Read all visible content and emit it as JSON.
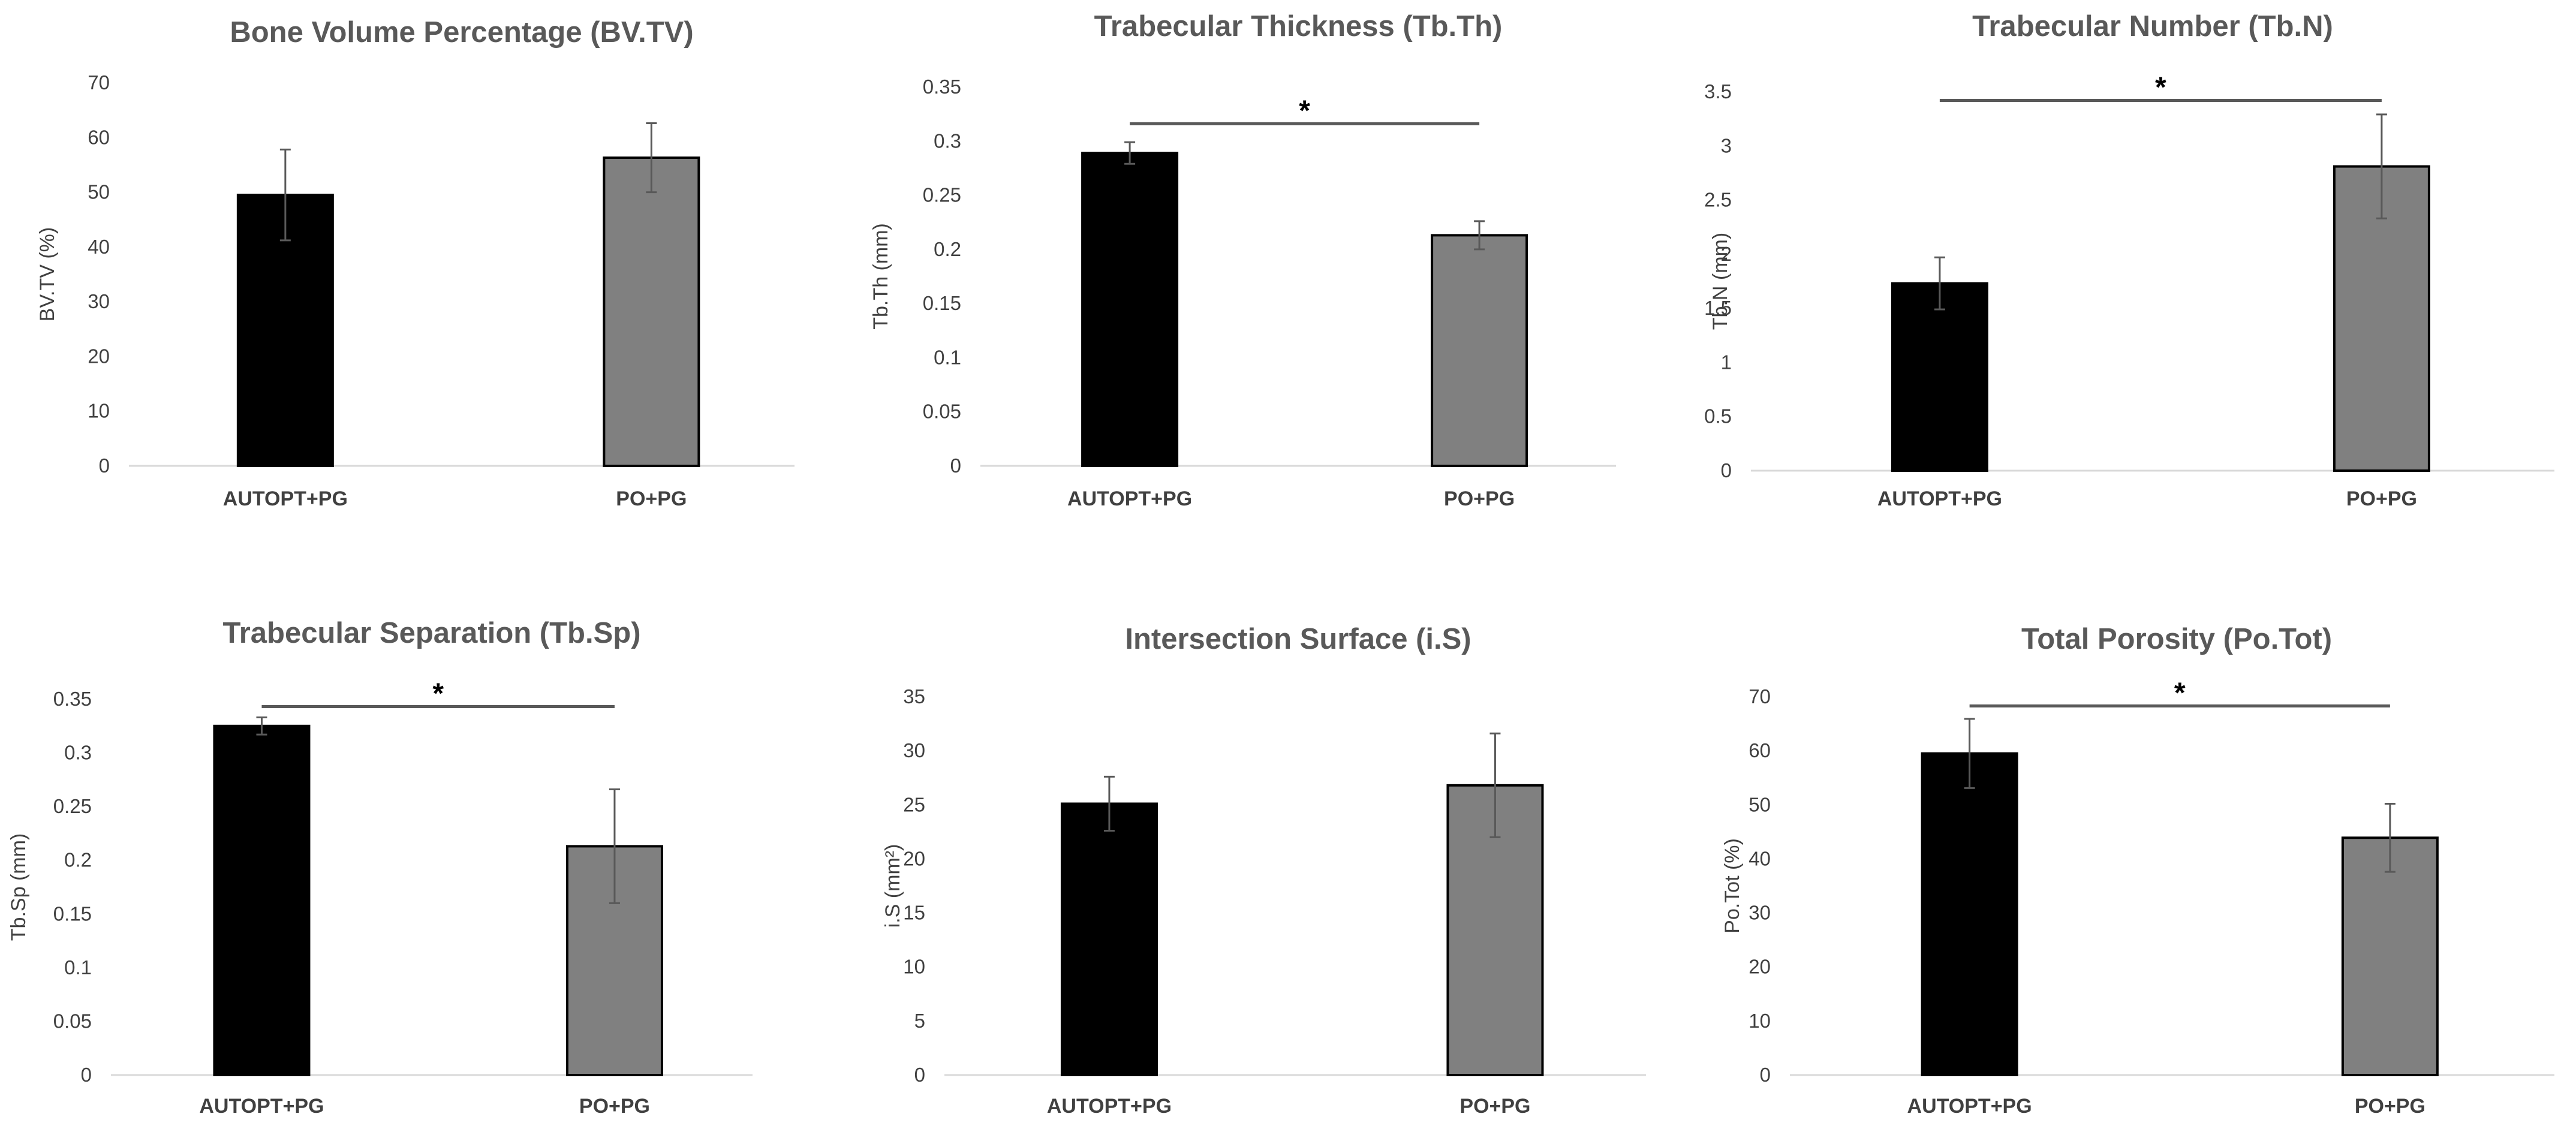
{
  "colors": {
    "group1": "#000000",
    "group2": "#808080",
    "axis": "#d9d9d9",
    "error": "#595959",
    "sig_line": "#595959"
  },
  "chart_data": [
    {
      "type": "bar",
      "title": "Bone Volume Percentage (BV.TV)",
      "ylabel": "BV.TV (%)",
      "categories": [
        "AUTOPT+PG",
        "PO+PG"
      ],
      "values": [
        49.5,
        56.3
      ],
      "errors": [
        8.3,
        6.3
      ],
      "ylim": [
        0,
        70
      ],
      "yticks": [
        "0",
        "10",
        "20",
        "30",
        "40",
        "50",
        "60",
        "70"
      ],
      "significance": null
    },
    {
      "type": "bar",
      "title": "Trabecular Thickness (Tb.Th)",
      "ylabel": "Tb.Th (mm)",
      "categories": [
        "AUTOPT+PG",
        "PO+PG"
      ],
      "values": [
        0.289,
        0.213
      ],
      "errors": [
        0.01,
        0.013
      ],
      "ylim": [
        0,
        0.35
      ],
      "yticks": [
        "0",
        "0.05",
        "0.1",
        "0.15",
        "0.2",
        "0.25",
        "0.3",
        "0.35"
      ],
      "significance": {
        "label": "*",
        "value": 0.316
      }
    },
    {
      "type": "bar",
      "title": "Trabecular Number (Tb.N)",
      "ylabel": "Tb.N (mm)",
      "categories": [
        "AUTOPT+PG",
        "PO+PG"
      ],
      "values": [
        1.73,
        2.81
      ],
      "errors": [
        0.24,
        0.48
      ],
      "ylim": [
        0,
        3.5
      ],
      "yticks": [
        "0",
        "0.5",
        "1",
        "1.5",
        "2",
        "2.5",
        "3",
        "3.5"
      ],
      "significance": {
        "label": "*",
        "value": 3.42
      }
    },
    {
      "type": "bar",
      "title": "Trabecular Separation (Tb.Sp)",
      "ylabel": "Tb.Sp (mm)",
      "categories": [
        "AUTOPT+PG",
        "PO+PG"
      ],
      "values": [
        0.325,
        0.213
      ],
      "errors": [
        0.008,
        0.053
      ],
      "ylim": [
        0,
        0.35
      ],
      "yticks": [
        "0",
        "0.05",
        "0.1",
        "0.15",
        "0.2",
        "0.25",
        "0.3",
        "0.35"
      ],
      "significance": {
        "label": "*",
        "value": 0.343
      }
    },
    {
      "type": "bar",
      "title": "Intersection Surface (i.S)",
      "ylabel": "i.S (mm²)",
      "categories": [
        "AUTOPT+PG",
        "PO+PG"
      ],
      "values": [
        25.1,
        26.8
      ],
      "errors": [
        2.5,
        4.8
      ],
      "ylim": [
        0,
        35
      ],
      "yticks": [
        "0",
        "5",
        "10",
        "15",
        "20",
        "25",
        "30",
        "35"
      ],
      "significance": null
    },
    {
      "type": "bar",
      "title": "Total Porosity  (Po.Tot)",
      "ylabel": "Po.Tot (%)",
      "categories": [
        "AUTOPT+PG",
        "PO+PG"
      ],
      "values": [
        59.5,
        43.9
      ],
      "errors": [
        6.4,
        6.3
      ],
      "ylim": [
        0,
        70
      ],
      "yticks": [
        "0",
        "10",
        "20",
        "30",
        "40",
        "50",
        "60",
        "70"
      ],
      "significance": {
        "label": "*",
        "value": 68.3
      }
    }
  ]
}
